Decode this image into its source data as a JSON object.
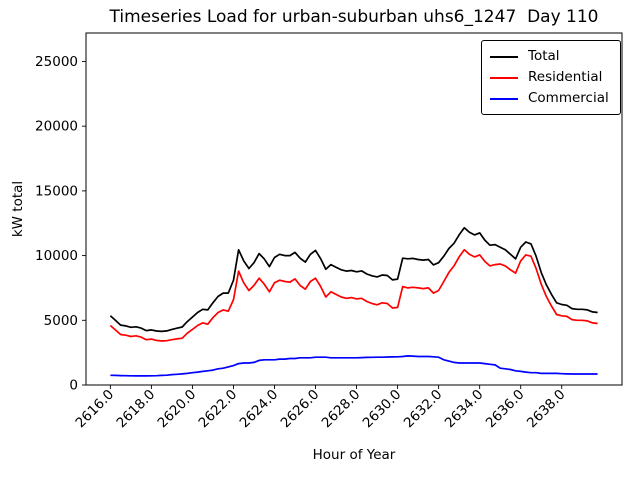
{
  "chart_data": {
    "type": "line",
    "title": "Timeseries Load for urban-suburban uhs6_1247  Day 110",
    "xlabel": "Hour of Year",
    "ylabel": "kW total",
    "xlim": [
      2614.8125,
      2640.9375
    ],
    "ylim": [
      0,
      27200
    ],
    "x_ticks": [
      2616,
      2618,
      2620,
      2622,
      2624,
      2626,
      2628,
      2630,
      2632,
      2634,
      2636,
      2638
    ],
    "x_tick_labels": [
      "2616.0",
      "2618.0",
      "2620.0",
      "2622.0",
      "2624.0",
      "2626.0",
      "2628.0",
      "2630.0",
      "2632.0",
      "2634.0",
      "2636.0",
      "2638.0"
    ],
    "y_ticks": [
      0,
      5000,
      10000,
      15000,
      20000,
      25000
    ],
    "y_tick_labels": [
      "0",
      "5000",
      "10000",
      "15000",
      "20000",
      "25000"
    ],
    "grid": false,
    "legend_position": "upper right",
    "x": [
      2616.0,
      2616.25,
      2616.5,
      2616.75,
      2617.0,
      2617.25,
      2617.5,
      2617.75,
      2618.0,
      2618.25,
      2618.5,
      2618.75,
      2619.0,
      2619.25,
      2619.5,
      2619.75,
      2620.0,
      2620.25,
      2620.5,
      2620.75,
      2621.0,
      2621.25,
      2621.5,
      2621.75,
      2622.0,
      2622.25,
      2622.5,
      2622.75,
      2623.0,
      2623.25,
      2623.5,
      2623.75,
      2624.0,
      2624.25,
      2624.5,
      2624.75,
      2625.0,
      2625.25,
      2625.5,
      2625.75,
      2626.0,
      2626.25,
      2626.5,
      2626.75,
      2627.0,
      2627.25,
      2627.5,
      2627.75,
      2628.0,
      2628.25,
      2628.5,
      2628.75,
      2629.0,
      2629.25,
      2629.5,
      2629.75,
      2630.0,
      2630.25,
      2630.5,
      2630.75,
      2631.0,
      2631.25,
      2631.5,
      2631.75,
      2632.0,
      2632.25,
      2632.5,
      2632.75,
      2633.0,
      2633.25,
      2633.5,
      2633.75,
      2634.0,
      2634.25,
      2634.5,
      2634.75,
      2635.0,
      2635.25,
      2635.5,
      2635.75,
      2636.0,
      2636.25,
      2636.5,
      2636.75,
      2637.0,
      2637.25,
      2637.5,
      2637.75,
      2638.0,
      2638.25,
      2638.5,
      2638.75,
      2639.0,
      2639.25,
      2639.5,
      2639.75
    ],
    "series": [
      {
        "name": "Total",
        "color": "#000000",
        "values": [
          5350,
          4990,
          4630,
          4570,
          4460,
          4500,
          4400,
          4200,
          4260,
          4170,
          4140,
          4180,
          4300,
          4390,
          4480,
          4900,
          5250,
          5600,
          5850,
          5800,
          6350,
          6850,
          7100,
          7100,
          8100,
          10450,
          9600,
          9000,
          9450,
          10150,
          9750,
          9150,
          9850,
          10100,
          10000,
          10000,
          10250,
          9800,
          9500,
          10100,
          10400,
          9750,
          8950,
          9300,
          9100,
          8900,
          8800,
          8850,
          8750,
          8820,
          8580,
          8440,
          8350,
          8500,
          8460,
          8120,
          8180,
          9800,
          9750,
          9780,
          9700,
          9650,
          9700,
          9280,
          9450,
          9950,
          10550,
          10950,
          11600,
          12150,
          11800,
          11600,
          11750,
          11200,
          10800,
          10850,
          10650,
          10450,
          10100,
          9750,
          10650,
          11050,
          10900,
          9950,
          8700,
          7750,
          7000,
          6350,
          6220,
          6160,
          5900,
          5850,
          5850,
          5800,
          5650,
          5600
        ]
      },
      {
        "name": "Residential",
        "color": "#ff0000",
        "values": [
          4600,
          4250,
          3900,
          3850,
          3750,
          3800,
          3700,
          3500,
          3550,
          3450,
          3400,
          3420,
          3500,
          3560,
          3620,
          4000,
          4300,
          4600,
          4800,
          4700,
          5200,
          5600,
          5800,
          5700,
          6600,
          8800,
          7900,
          7300,
          7700,
          8250,
          7800,
          7200,
          7900,
          8100,
          8000,
          7950,
          8200,
          7700,
          7400,
          8000,
          8250,
          7600,
          6800,
          7200,
          7000,
          6800,
          6700,
          6750,
          6650,
          6700,
          6450,
          6300,
          6200,
          6350,
          6300,
          5950,
          6000,
          7600,
          7500,
          7550,
          7500,
          7450,
          7500,
          7100,
          7300,
          8000,
          8700,
          9200,
          9900,
          10450,
          10100,
          9900,
          10050,
          9550,
          9200,
          9300,
          9350,
          9200,
          8900,
          8650,
          9600,
          10050,
          9950,
          9000,
          7800,
          6850,
          6100,
          5450,
          5350,
          5300,
          5050,
          5000,
          5000,
          4950,
          4800,
          4750
        ]
      },
      {
        "name": "Commercial",
        "color": "#0000ff",
        "values": [
          750,
          740,
          730,
          720,
          710,
          700,
          700,
          700,
          710,
          720,
          740,
          760,
          800,
          830,
          860,
          900,
          950,
          1000,
          1050,
          1100,
          1150,
          1250,
          1300,
          1400,
          1500,
          1650,
          1700,
          1700,
          1750,
          1900,
          1950,
          1950,
          1950,
          2000,
          2000,
          2050,
          2050,
          2100,
          2100,
          2100,
          2150,
          2150,
          2150,
          2100,
          2100,
          2100,
          2100,
          2100,
          2100,
          2120,
          2130,
          2140,
          2150,
          2150,
          2160,
          2170,
          2180,
          2200,
          2250,
          2230,
          2200,
          2200,
          2200,
          2180,
          2150,
          1950,
          1850,
          1750,
          1700,
          1700,
          1700,
          1700,
          1700,
          1650,
          1600,
          1550,
          1300,
          1250,
          1200,
          1100,
          1050,
          1000,
          950,
          950,
          900,
          900,
          900,
          900,
          870,
          860,
          850,
          850,
          850,
          850,
          850,
          850
        ]
      }
    ]
  }
}
